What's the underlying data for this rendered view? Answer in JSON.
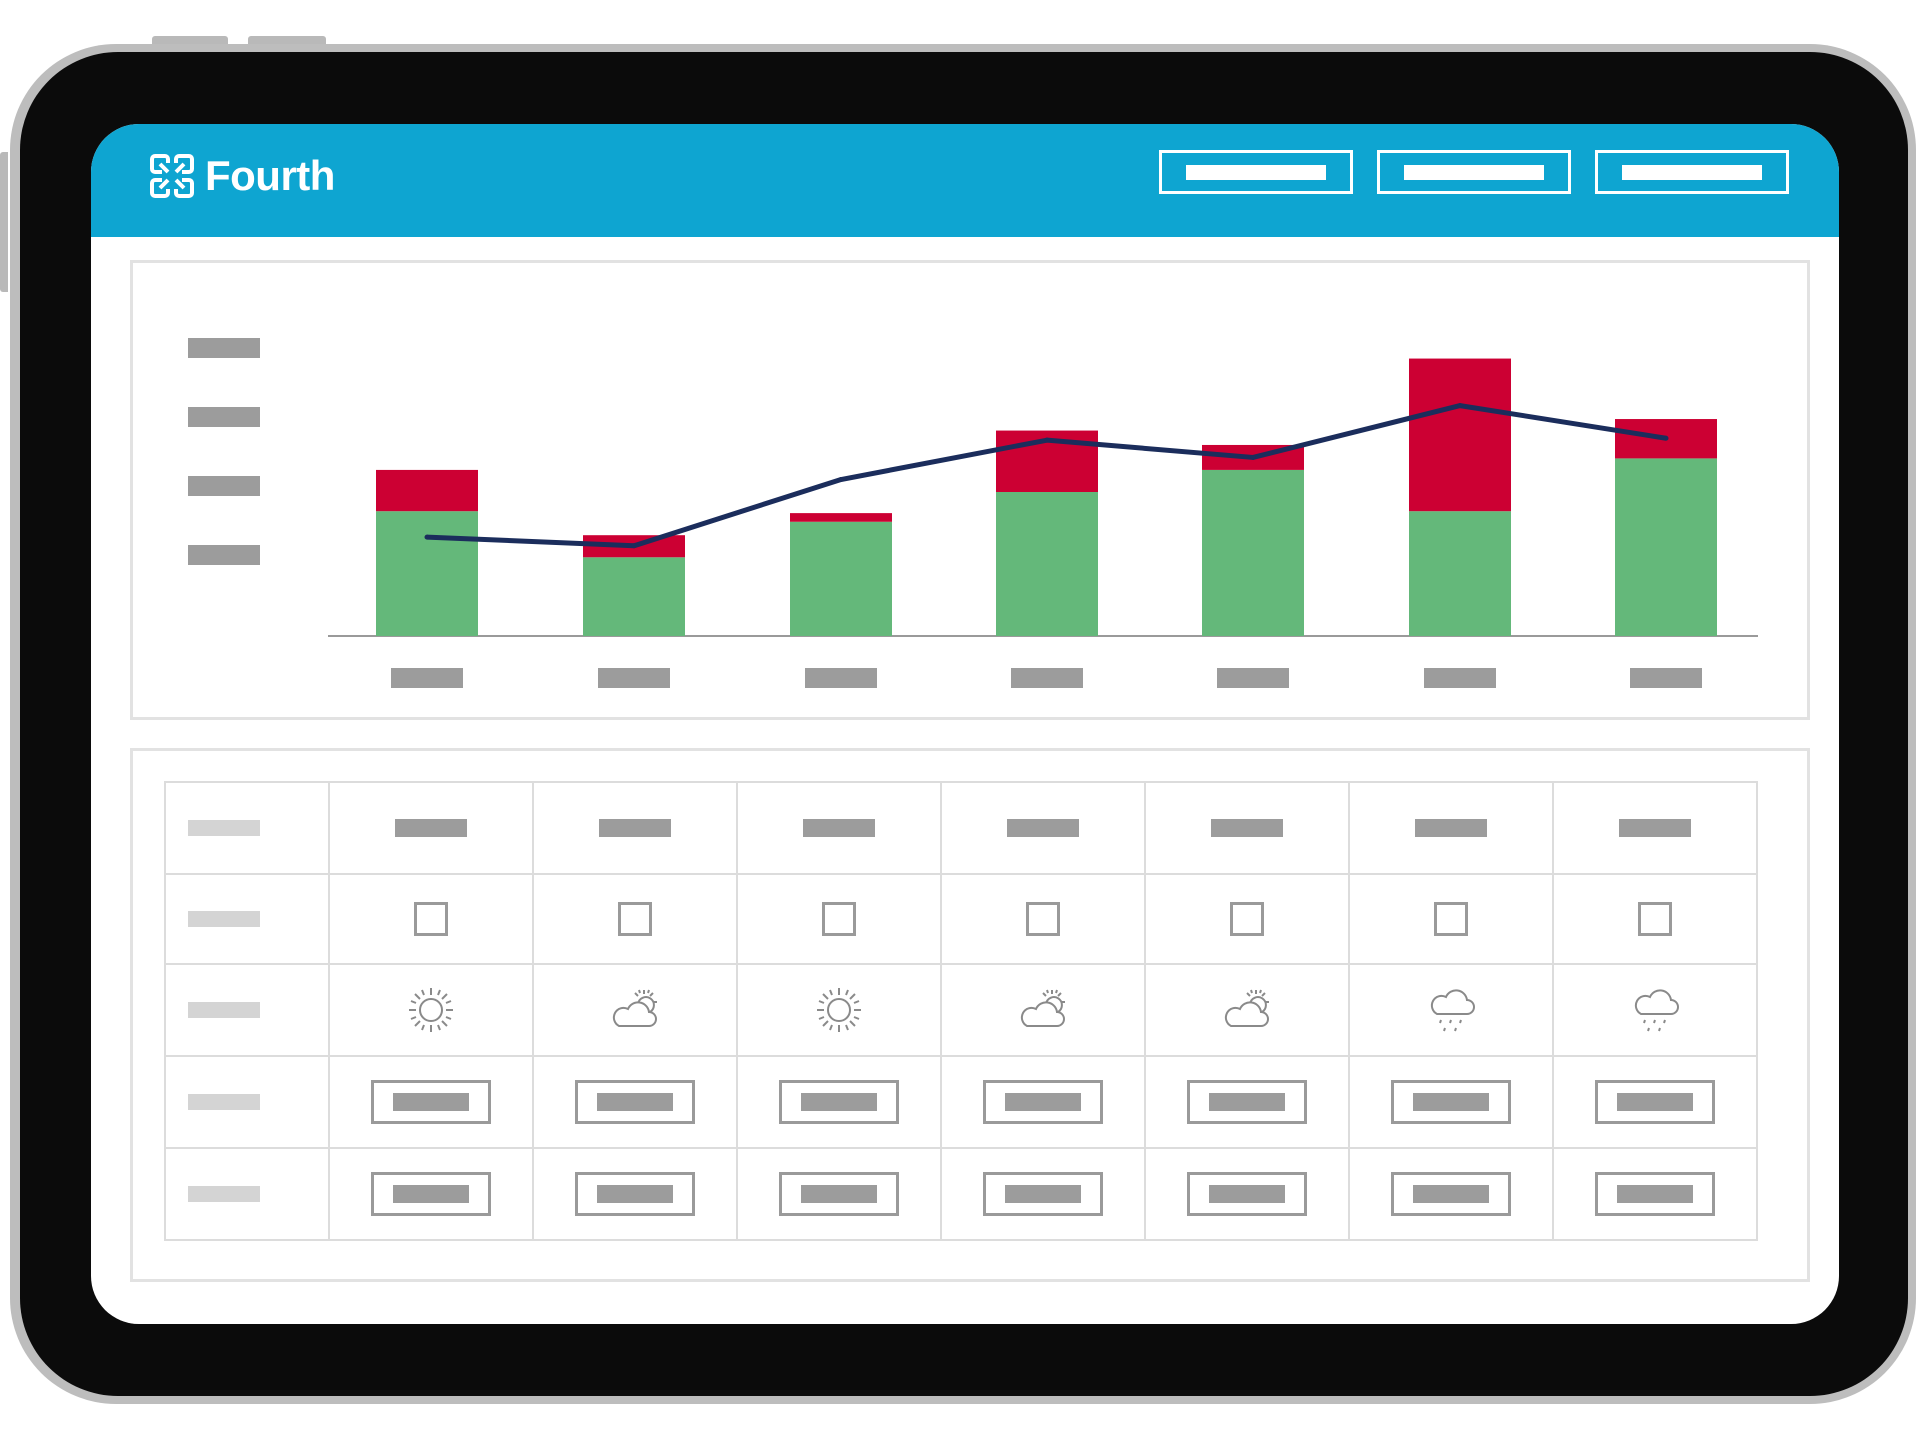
{
  "app": {
    "brand_name": "Fourth"
  },
  "colors": {
    "header": "#0ea5d1",
    "bar_base": "#64b87a",
    "bar_top": "#cc0033",
    "line": "#1b2d5c",
    "placeholder": "#9c9c9c"
  },
  "header": {
    "buttons": [
      "button-1",
      "button-2",
      "button-3"
    ]
  },
  "chart_data": {
    "type": "bar",
    "stacked": true,
    "categories": [
      "",
      "",
      "",
      "",
      "",
      "",
      ""
    ],
    "series": [
      {
        "values": [
          130,
          82,
          119,
          150,
          173,
          130,
          185
        ]
      },
      {
        "values": [
          43,
          23,
          9,
          64,
          26,
          159,
          41
        ]
      }
    ],
    "line": {
      "values": [
        103,
        94,
        163,
        204,
        186,
        240,
        206
      ]
    },
    "ylim": [
      0,
      300
    ],
    "y_tick_count": 4,
    "grid": false,
    "legend": "none",
    "xlabel": "",
    "ylabel": ""
  },
  "table": {
    "rows": [
      "header",
      "checkbox",
      "weather",
      "input",
      "input"
    ],
    "columns": 7,
    "weather": [
      "sun-icon",
      "partly-cloudy-icon",
      "sun-icon",
      "partly-cloudy-icon",
      "partly-cloudy-icon",
      "rain-icon",
      "rain-icon"
    ]
  }
}
